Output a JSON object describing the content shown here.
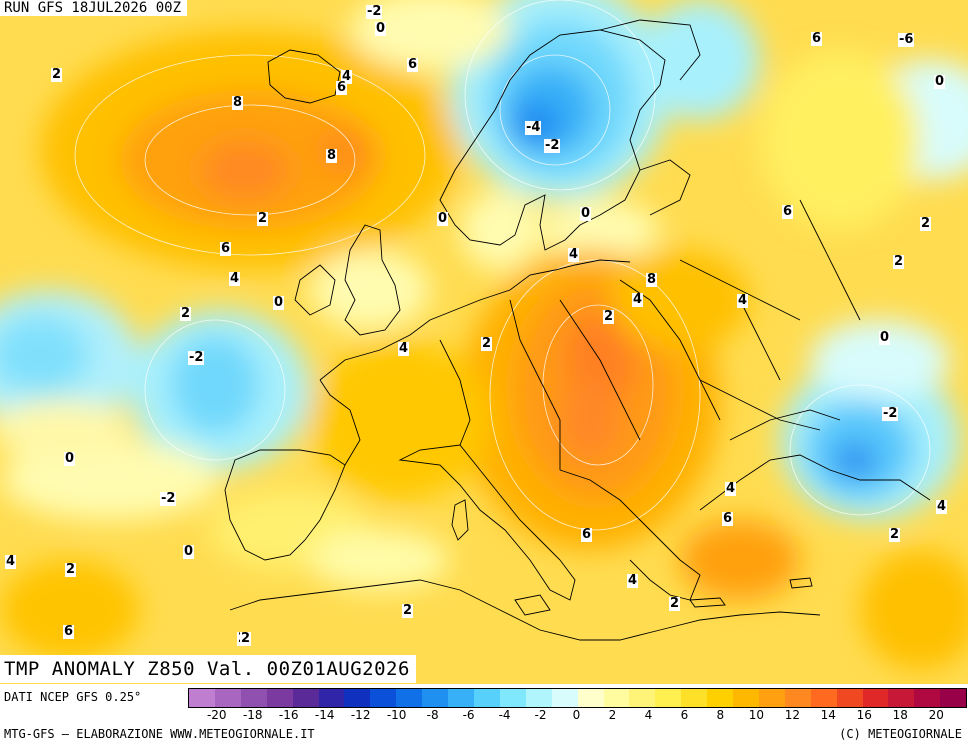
{
  "header": {
    "run_label": "RUN GFS 18JUL2026 00Z"
  },
  "title": {
    "text": "TMP ANOMALY Z850 Val. 00Z01AUG2026"
  },
  "footer": {
    "data_source": "DATI NCEP GFS 0.25°",
    "credit": "MTG-GFS – ELABORAZIONE WWW.METEOGIORNALE.IT",
    "copyright": "(C) METEOGIORNALE"
  },
  "legend": {
    "ticks": [
      "-20",
      "-18",
      "-16",
      "-14",
      "-12",
      "-10",
      "-8",
      "-6",
      "-4",
      "-2",
      "0",
      "2",
      "4",
      "6",
      "8",
      "10",
      "12",
      "14",
      "16",
      "18",
      "20"
    ],
    "colors": [
      "#c07ed0",
      "#a866c0",
      "#9050b0",
      "#7a3aa0",
      "#5a2a98",
      "#3024a8",
      "#1030c0",
      "#0a50d8",
      "#1070e8",
      "#2090f0",
      "#38b0f8",
      "#58d0fc",
      "#80e8fc",
      "#b0f4fc",
      "#d8fcfc",
      "#ffffcc",
      "#fffca0",
      "#fff478",
      "#fff050",
      "#ffe028",
      "#ffd000",
      "#ffb800",
      "#ffa010",
      "#ff8820",
      "#ff6a20",
      "#f04820",
      "#e02828",
      "#c81838",
      "#b00840",
      "#980048"
    ]
  },
  "colors": {
    "ocean_base": "#ffe066",
    "warm_core": "#ff9a1a",
    "cold_core": "#2f8ff0",
    "coastline": "#000000"
  },
  "contour_labels": [
    {
      "value": "-2"
    },
    {
      "value": "0"
    },
    {
      "value": "2"
    },
    {
      "value": "4"
    },
    {
      "value": "6"
    },
    {
      "value": "8"
    },
    {
      "value": "6"
    },
    {
      "value": "8"
    },
    {
      "value": "2"
    },
    {
      "value": "-6"
    },
    {
      "value": "-4"
    },
    {
      "value": "-2"
    },
    {
      "value": "0"
    },
    {
      "value": "0"
    },
    {
      "value": "4"
    },
    {
      "value": "6"
    },
    {
      "value": "8"
    },
    {
      "value": "4"
    },
    {
      "value": "2"
    },
    {
      "value": "4"
    },
    {
      "value": "2"
    },
    {
      "value": "6"
    },
    {
      "value": "2"
    },
    {
      "value": "0"
    },
    {
      "value": "2"
    },
    {
      "value": "0"
    },
    {
      "value": "-2"
    },
    {
      "value": "4"
    },
    {
      "value": "2"
    },
    {
      "value": "0"
    },
    {
      "value": "-2"
    },
    {
      "value": "2"
    },
    {
      "value": "0"
    },
    {
      "value": "4"
    },
    {
      "value": "6"
    },
    {
      "value": "4"
    },
    {
      "value": "6"
    },
    {
      "value": "4"
    },
    {
      "value": "2"
    },
    {
      "value": "6"
    },
    {
      "value": "2"
    },
    {
      "value": "2"
    },
    {
      "value": "4"
    },
    {
      "value": "6"
    },
    {
      "value": "2"
    },
    {
      "value": "-2"
    },
    {
      "value": "4"
    },
    {
      "value": "2"
    },
    {
      "value": "0"
    }
  ]
}
